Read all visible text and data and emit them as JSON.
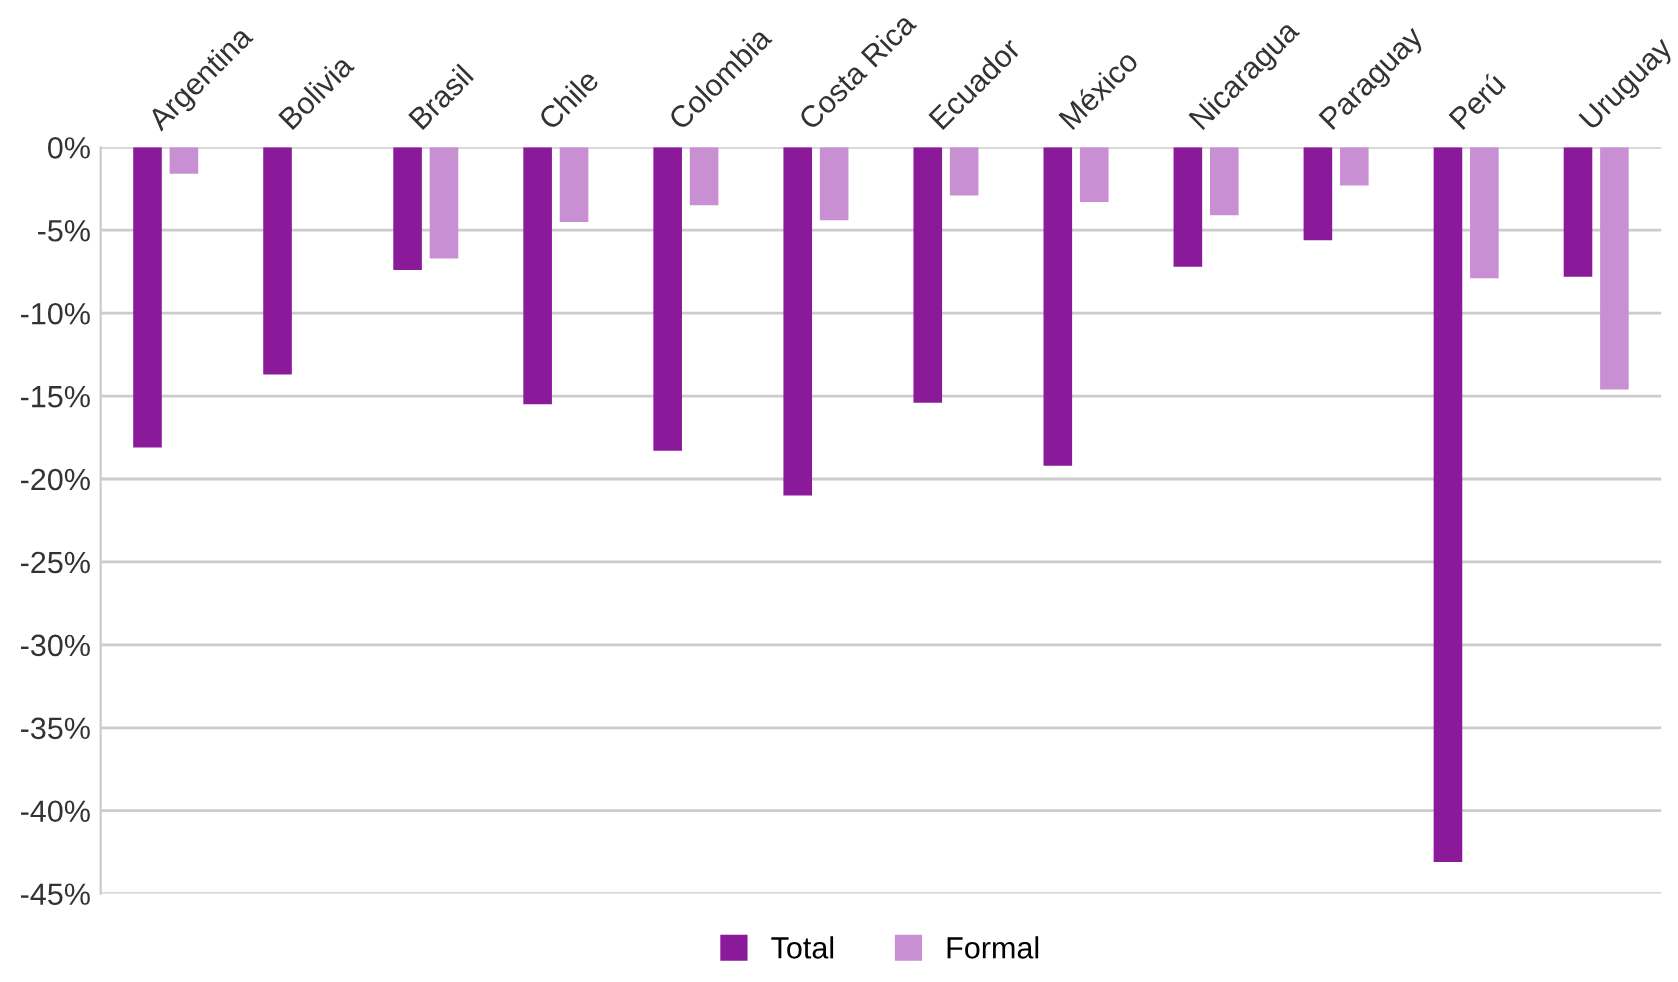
{
  "chart_data": {
    "type": "bar",
    "categories": [
      "Argentina",
      "Bolivia",
      "Brasil",
      "Chile",
      "Colombia",
      "Costa Rica",
      "Ecuador",
      "México",
      "Nicaragua",
      "Paraguay",
      "Perú",
      "Uruguay"
    ],
    "series": [
      {
        "name": "Total",
        "color": "#8b1a9b",
        "values": [
          -18.1,
          -13.7,
          -7.4,
          -15.5,
          -18.3,
          -21.0,
          -15.4,
          -19.2,
          -7.2,
          -5.6,
          -43.1,
          -7.8
        ]
      },
      {
        "name": "Formal",
        "color": "#c98fd3",
        "values": [
          -1.6,
          null,
          -6.7,
          -4.5,
          -3.5,
          -4.4,
          -2.9,
          -3.3,
          -4.1,
          -2.3,
          -7.9,
          -14.6
        ]
      }
    ],
    "ylim": [
      -45,
      0
    ],
    "yticks": [
      {
        "value": 0,
        "label": "0%"
      },
      {
        "value": -5,
        "label": "-5%"
      },
      {
        "value": -10,
        "label": "-10%"
      },
      {
        "value": -15,
        "label": "-15%"
      },
      {
        "value": -20,
        "label": "-20%"
      },
      {
        "value": -25,
        "label": "-25%"
      },
      {
        "value": -30,
        "label": "-30%"
      },
      {
        "value": -35,
        "label": "-35%"
      },
      {
        "value": -40,
        "label": "-40%"
      },
      {
        "value": -45,
        "label": "-45%"
      }
    ],
    "grid": "y",
    "legend": "bottom"
  }
}
